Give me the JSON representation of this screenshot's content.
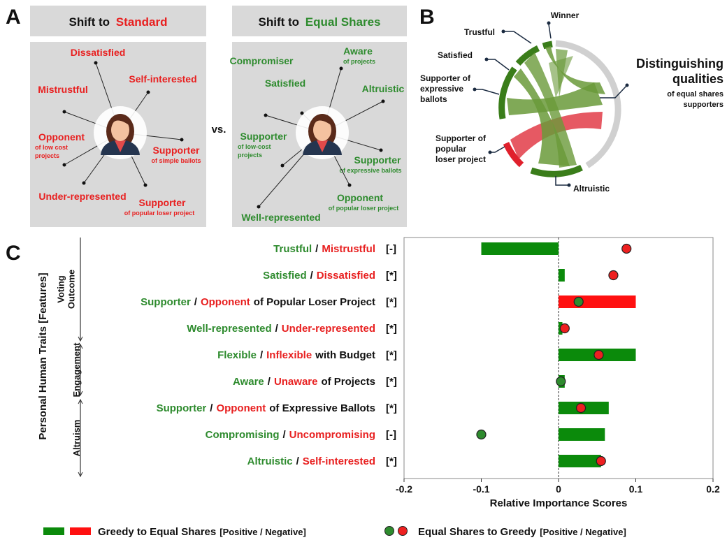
{
  "panel_letters": [
    "A",
    "B",
    "C"
  ],
  "panel_a": {
    "vs": "vs.",
    "left": {
      "title": "Shift to",
      "title_highlight": "Standard",
      "labels": [
        {
          "text": "Dissatisfied"
        },
        {
          "text": "Self-interested"
        },
        {
          "text": "Mistrustful"
        },
        {
          "text": "Opponent",
          "sub": [
            "of low cost",
            "projects"
          ]
        },
        {
          "text": "Supporter",
          "sub": [
            "of simple ballots"
          ]
        },
        {
          "text": "Under-represented"
        },
        {
          "text": "Supporter",
          "sub": [
            "of popular loser project"
          ]
        }
      ]
    },
    "right": {
      "title": "Shift to",
      "title_highlight": "Equal Shares",
      "labels": [
        {
          "text": "Compromiser"
        },
        {
          "text": "Aware",
          "sub": [
            "of projects"
          ]
        },
        {
          "text": "Satisfied"
        },
        {
          "text": "Altruistic"
        },
        {
          "text": "Supporter",
          "sub": [
            "of low-cost",
            "projects"
          ]
        },
        {
          "text": "Supporter",
          "sub": [
            "of expressive ballots"
          ]
        },
        {
          "text": "Opponent",
          "sub": [
            "of popular loser project"
          ]
        },
        {
          "text": "Well-represented"
        }
      ]
    }
  },
  "panel_b": {
    "labels": [
      [
        "Winner"
      ],
      [
        "Trustful"
      ],
      [
        "Satisfied"
      ],
      [
        "Supporter of",
        "expressive",
        "ballots"
      ],
      [
        "Supporter of",
        "popular",
        "loser project"
      ],
      [
        "Altruistic"
      ]
    ],
    "title": [
      "Distinguishing",
      "qualities"
    ],
    "subtitle": [
      "of equal shares",
      "supporters"
    ]
  },
  "chart_data": {
    "type": "bar",
    "separator": "/",
    "rows": [
      {
        "positive": "Trustful",
        "negative": "Mistrustful",
        "significance": "[-]"
      },
      {
        "positive": "Satisfied",
        "negative": "Dissatisfied",
        "significance": "[*]"
      },
      {
        "positive": "Supporter",
        "negative": "Opponent",
        "suffix": "of Popular Loser Project",
        "significance": "[*]"
      },
      {
        "positive": "Well-represented",
        "negative": "Under-represented",
        "significance": "[*]"
      },
      {
        "positive": "Flexible",
        "negative": "Inflexible",
        "suffix": "with Budget",
        "significance": "[*]"
      },
      {
        "positive": "Aware",
        "negative": "Unaware",
        "suffix": "of Projects",
        "significance": "[*]"
      },
      {
        "positive": "Supporter",
        "negative": "Opponent",
        "suffix": "of Expressive Ballots",
        "significance": "[*]"
      },
      {
        "positive": "Compromising",
        "negative": "Uncompromising",
        "significance": "[-]"
      },
      {
        "positive": "Altruistic",
        "negative": "Self-interested",
        "significance": "[*]"
      }
    ],
    "groups": [
      {
        "name": [
          "Voting",
          "Outcome"
        ]
      },
      {
        "name": [
          "Engagement"
        ]
      },
      {
        "name": [
          "Altruism"
        ]
      }
    ],
    "ylabel": "Personal Human Traits [Features]",
    "xlabel": "Relative Importance Scores",
    "xlim": [
      -0.2,
      0.2
    ],
    "xticks": [
      -0.2,
      -0.1,
      0,
      0.1,
      0.2
    ],
    "series": [
      {
        "name": "Greedy to Equal Shares",
        "values": [
          -0.1,
          0.008,
          0.1,
          0.005,
          0.1,
          0.008,
          0.065,
          0.06,
          0.055
        ],
        "colors": [
          "#0b8a0b",
          "#0b8a0b",
          "#ff1010",
          "#0b8a0b",
          "#0b8a0b",
          "#0b8a0b",
          "#0b8a0b",
          "#0b8a0b",
          "#0b8a0b"
        ]
      },
      {
        "name": "Equal Shares to Greedy",
        "values": [
          0.088,
          0.071,
          0.026,
          0.008,
          0.052,
          0.003,
          0.029,
          -0.1,
          0.055
        ],
        "colors": [
          "#ee2020",
          "#ee2020",
          "#2e8b2e",
          "#ee2020",
          "#ee2020",
          "#2e8b2e",
          "#ee2020",
          "#2e8b2e",
          "#ee2020"
        ]
      }
    ],
    "legend_note": "[Positive / Negative]"
  }
}
